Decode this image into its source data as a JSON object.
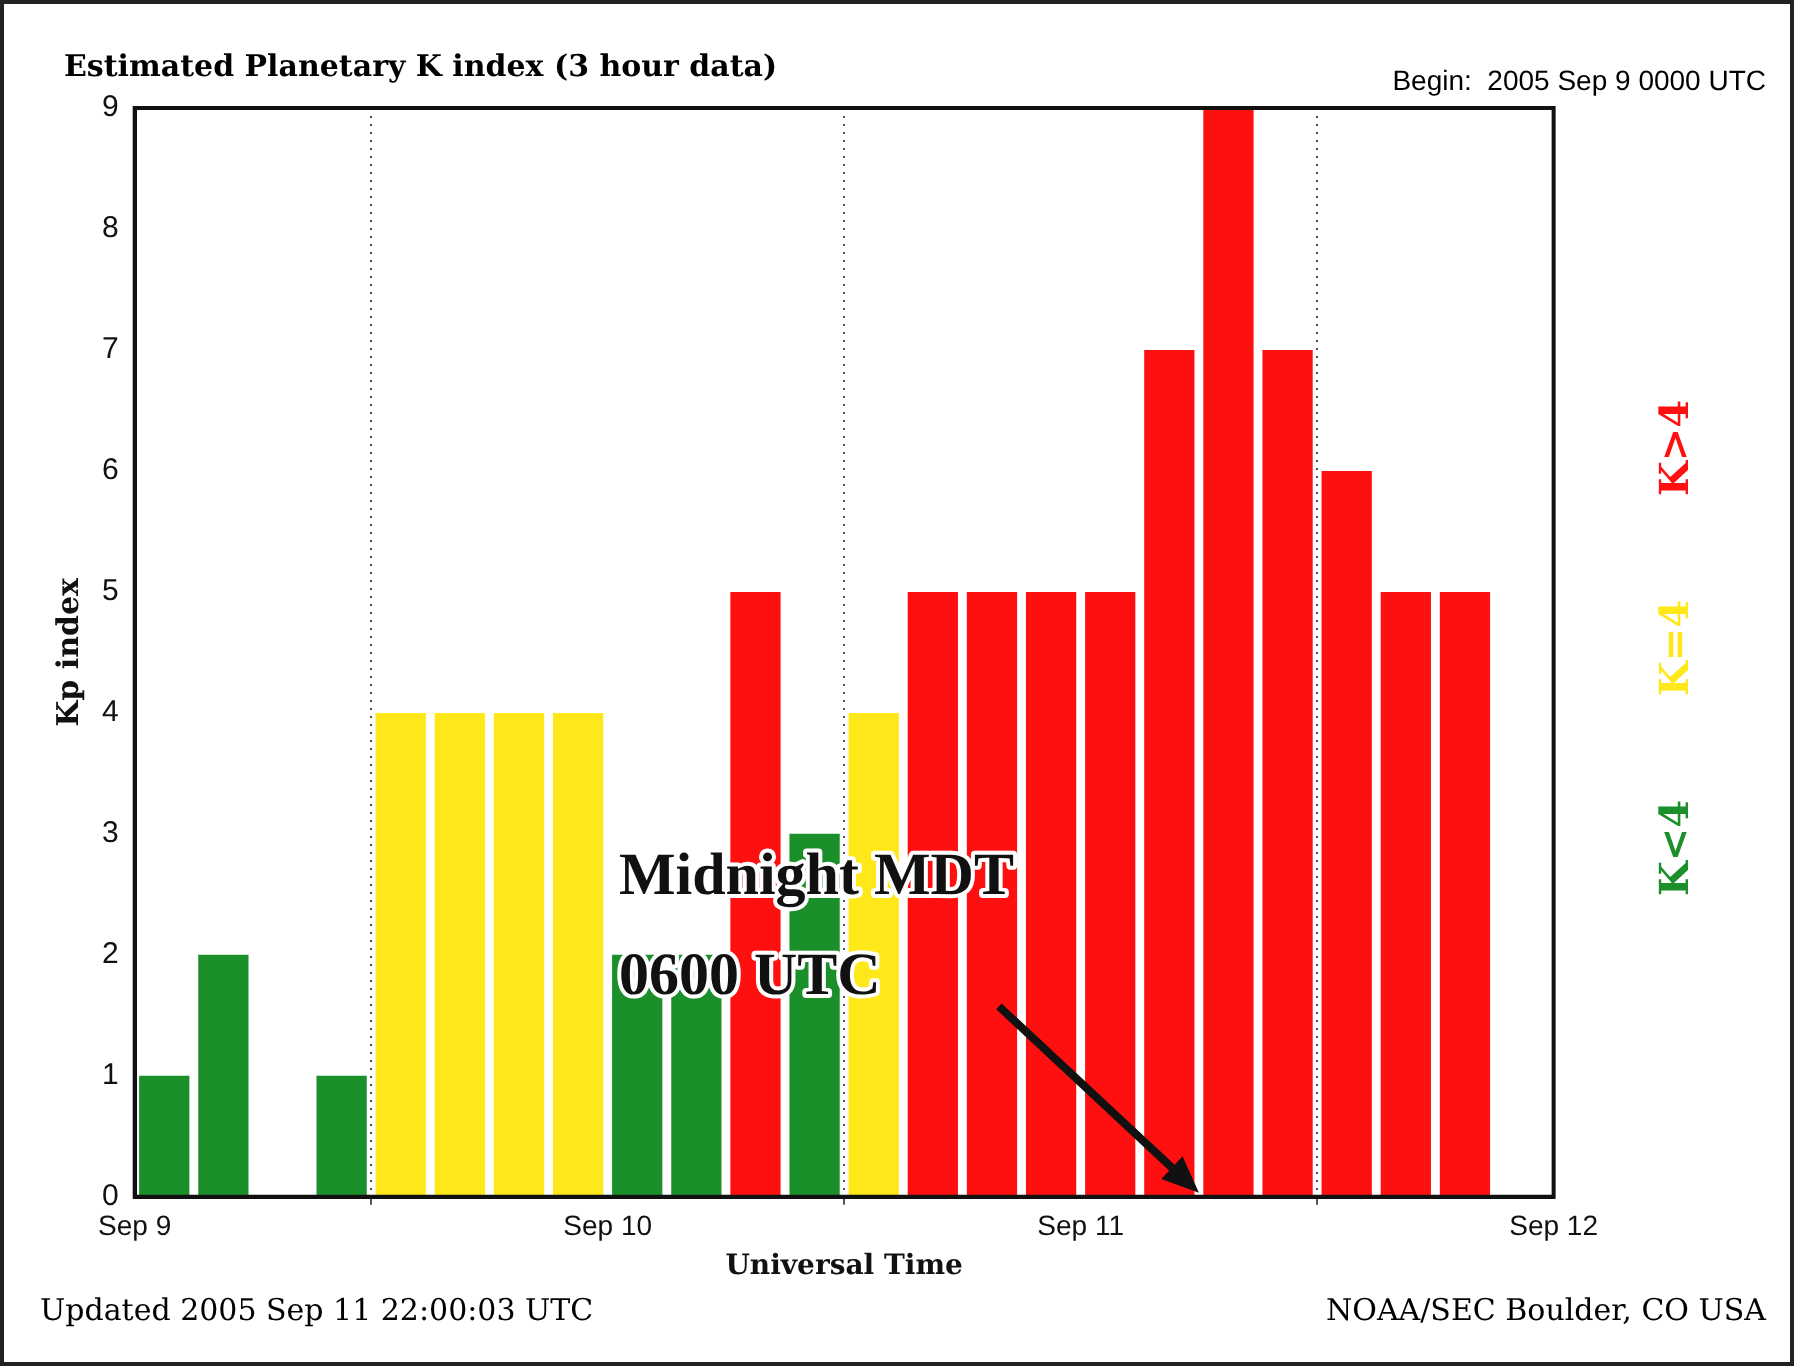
{
  "chart_data": {
    "type": "bar",
    "title": "Estimated Planetary K index (3 hour data)",
    "subtitle": "Begin:  2005 Sep 9 0000 UTC",
    "xlabel": "Universal Time",
    "ylabel": "Kp index",
    "x": [
      "2005-09-09T01:30",
      "2005-09-09T04:30",
      "2005-09-09T07:30",
      "2005-09-09T10:30",
      "2005-09-09T13:30",
      "2005-09-09T16:30",
      "2005-09-09T19:30",
      "2005-09-09T22:30",
      "2005-09-10T01:30",
      "2005-09-10T04:30",
      "2005-09-10T07:30",
      "2005-09-10T10:30",
      "2005-09-10T13:30",
      "2005-09-10T16:30",
      "2005-09-10T19:30",
      "2005-09-10T22:30",
      "2005-09-11T01:30",
      "2005-09-11T04:30",
      "2005-09-11T07:30",
      "2005-09-11T10:30",
      "2005-09-11T13:30",
      "2005-09-11T16:30",
      "2005-09-11T19:30"
    ],
    "series": [
      {
        "name": "K<4",
        "color": "#1a8f2a",
        "values": [
          1,
          2,
          0,
          1,
          null,
          null,
          null,
          null,
          2,
          2,
          null,
          3,
          null,
          null,
          null,
          null,
          null,
          null,
          null,
          null,
          null,
          null,
          null
        ]
      },
      {
        "name": "K=4",
        "color": "#ffe81a",
        "values": [
          null,
          null,
          null,
          null,
          4,
          4,
          4,
          4,
          null,
          null,
          null,
          null,
          4,
          null,
          null,
          null,
          null,
          null,
          null,
          null,
          null,
          null,
          null
        ]
      },
      {
        "name": "K>4",
        "color": "#ff1010",
        "values": [
          null,
          null,
          null,
          null,
          null,
          null,
          null,
          null,
          null,
          null,
          5,
          null,
          null,
          5,
          5,
          5,
          5,
          7,
          9,
          7,
          6,
          5,
          5
        ]
      }
    ],
    "xlim": [
      "2005-09-09",
      "2005-09-12"
    ],
    "xticks": [
      {
        "value": "2005-09-09",
        "label": "Sep 9"
      },
      {
        "value": "2005-09-10",
        "label": "Sep 10"
      },
      {
        "value": "2005-09-11",
        "label": "Sep 11"
      },
      {
        "value": "2005-09-12",
        "label": "Sep 12"
      }
    ],
    "ylim": [
      0,
      9
    ],
    "yticks": [
      0,
      1,
      2,
      3,
      4,
      5,
      6,
      7,
      8,
      9
    ],
    "grid": "x",
    "line_style": "dotted",
    "legend": "right",
    "annotations": [
      "Midnight MDT\n0600 UTC",
      "Updated 2005 Sep 11 22:00:03 UTC",
      "NOAA/SEC Boulder, CO USA"
    ]
  }
}
